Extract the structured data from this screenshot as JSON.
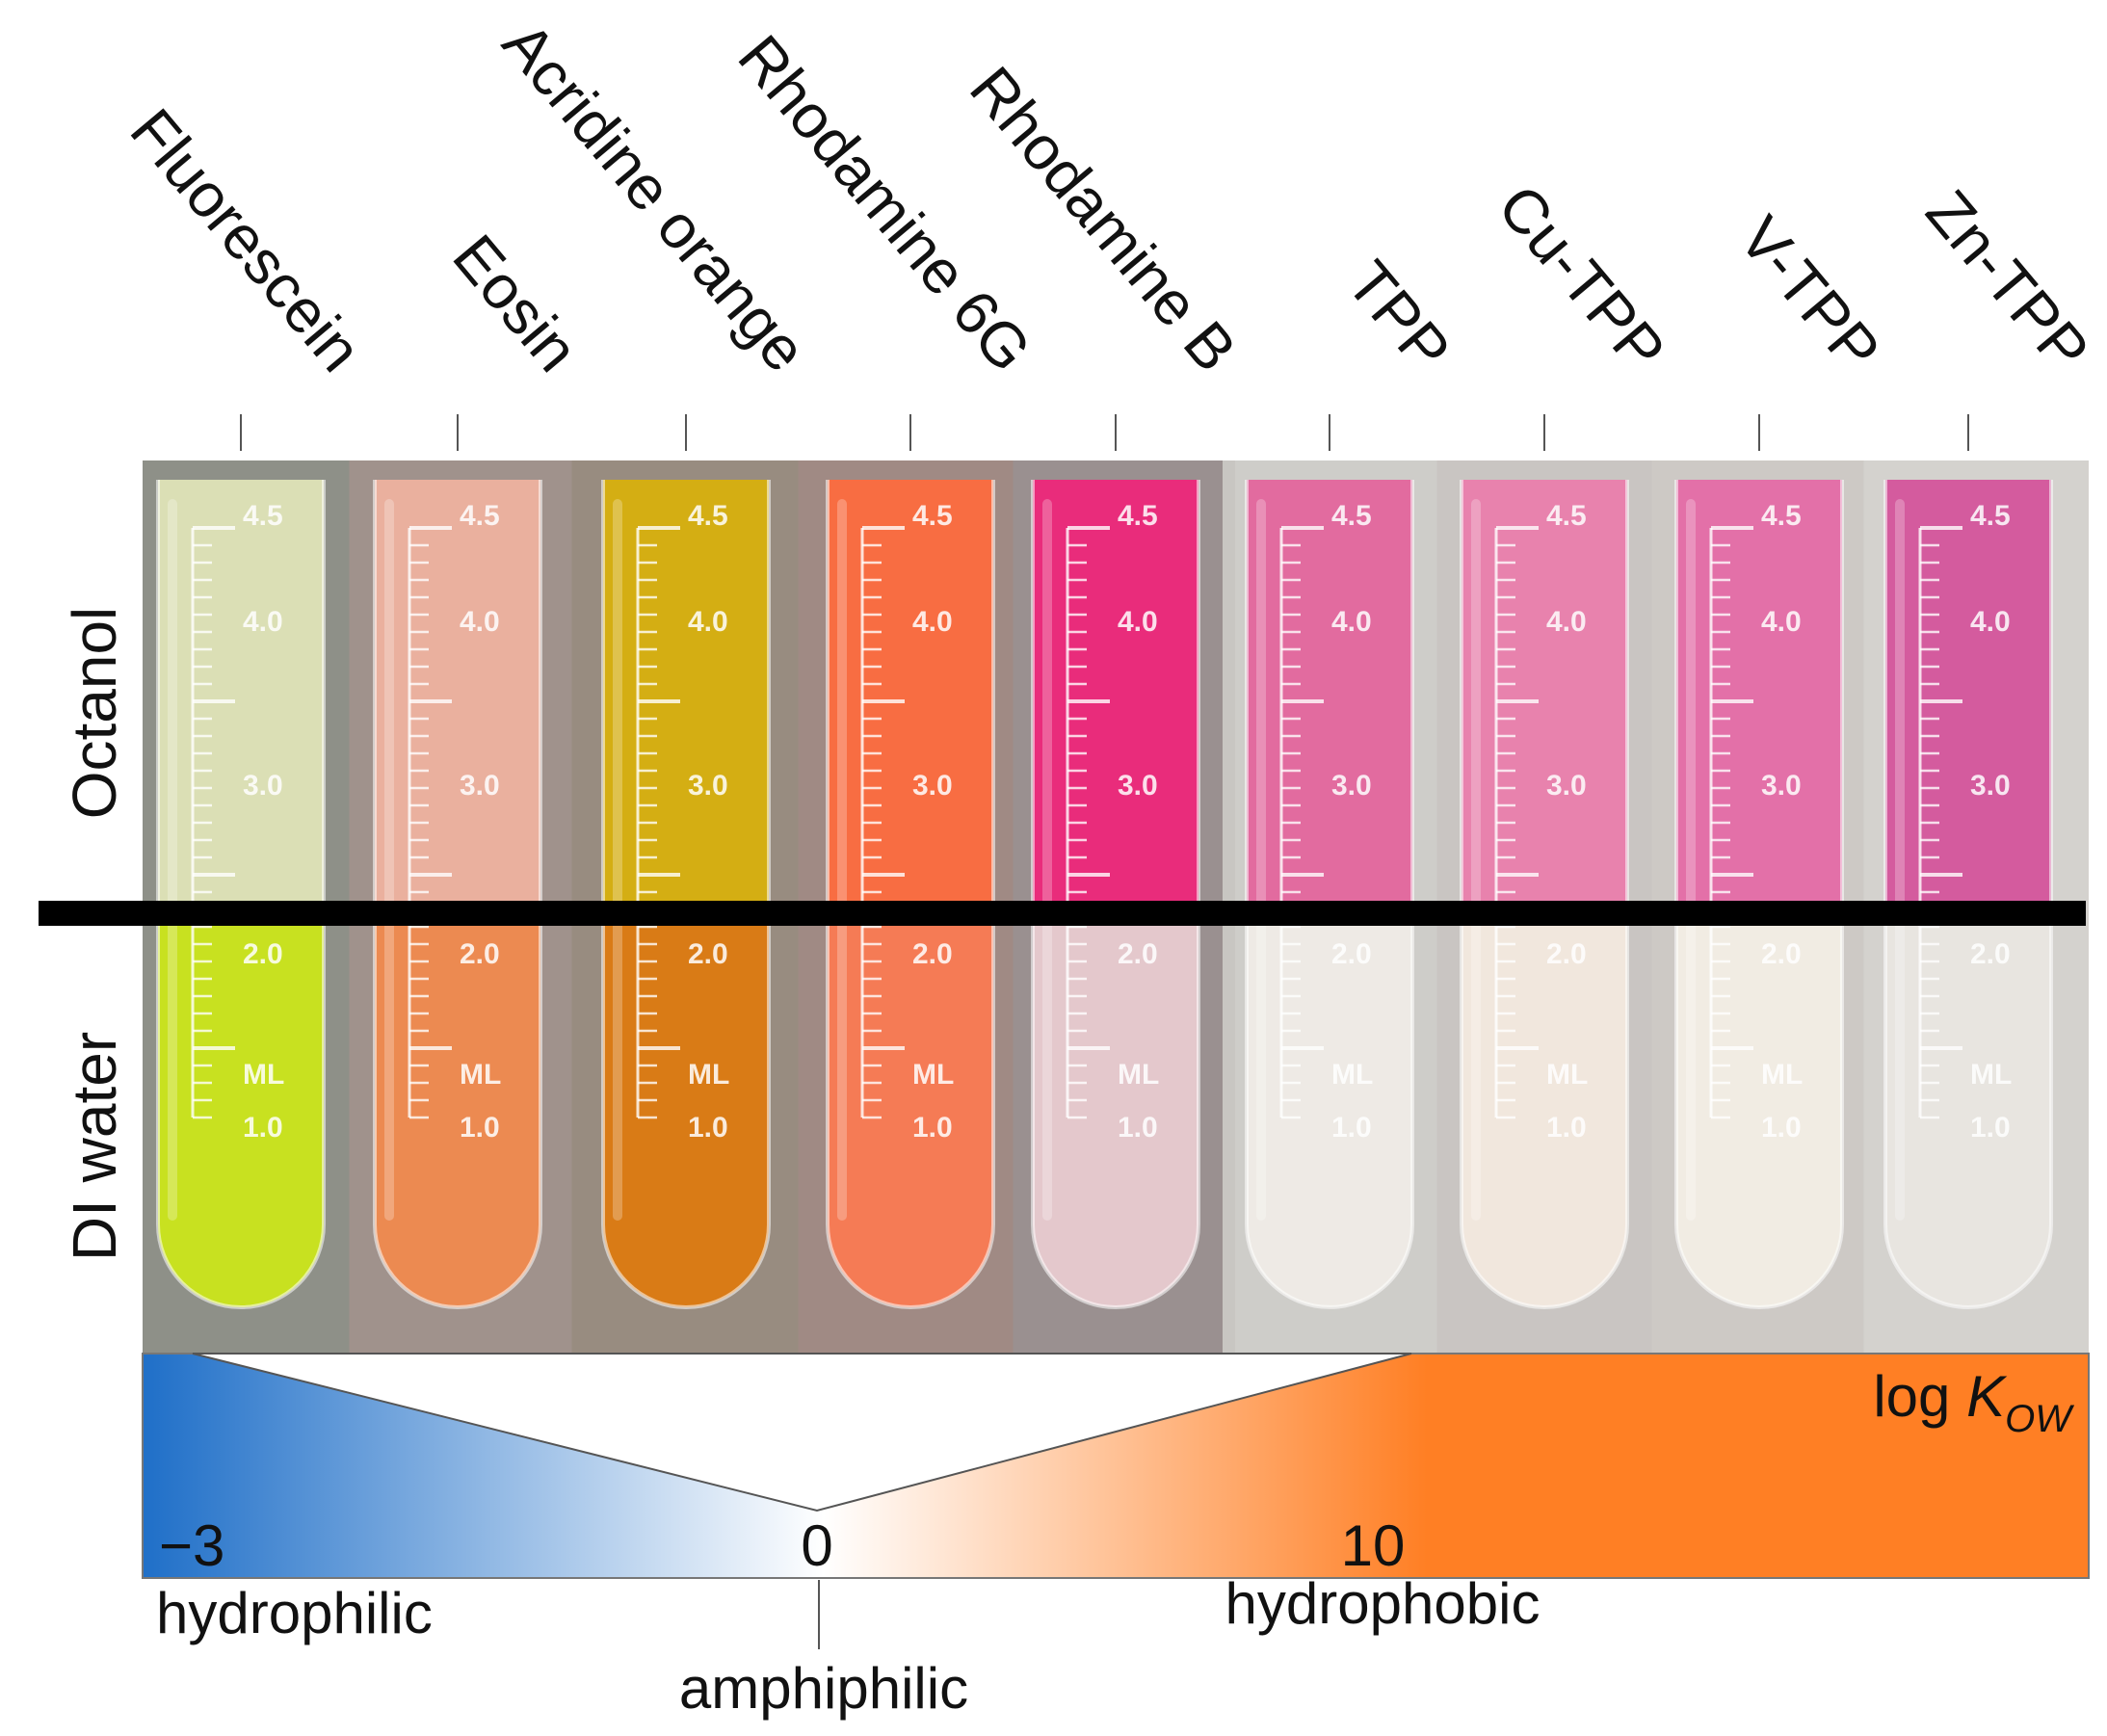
{
  "samples": [
    {
      "label": "Fluorescein",
      "top_color": "#e2e6b8",
      "bottom_color": "#cbe61a",
      "bg": "#8e9088"
    },
    {
      "label": "Eosin",
      "top_color": "#f0b3a0",
      "bottom_color": "#f08a4e",
      "bg": "#a0928c"
    },
    {
      "label": "Acridine orange",
      "top_color": "#d9b10a",
      "bottom_color": "#dc7a10",
      "bg": "#988c80"
    },
    {
      "label": "Rhodamine 6G",
      "top_color": "#ff6a3d",
      "bottom_color": "#fa7a52",
      "bg": "#a08a84"
    },
    {
      "label": "Rhodamine B",
      "top_color": "#f0247a",
      "bottom_color": "#e8cbd0",
      "bg": "#9a9090"
    },
    {
      "label": "TPP",
      "top_color": "#e04d8e",
      "bottom_color": "#eeeae4",
      "bg": "#c8c6c2"
    },
    {
      "label": "Cu-TPP",
      "top_color": "#e86aa0",
      "bottom_color": "#f2e6da",
      "bg": "#c2beba"
    },
    {
      "label": "V-TPP",
      "top_color": "#e2559a",
      "bottom_color": "#f2ece2",
      "bg": "#c6c2be"
    },
    {
      "label": "Zn-TPP",
      "top_color": "#cf3a8c",
      "bottom_color": "#e6e3dd",
      "bg": "#cfccc8"
    }
  ],
  "tube_marks": {
    "tick_values": [
      "4.5",
      "4.0",
      "3.0",
      "2.0",
      "1.0"
    ],
    "unit": "ML"
  },
  "phases": {
    "top": "Octanol",
    "bottom": "DI water"
  },
  "scale": {
    "title_prefix": "log ",
    "title_var": "K",
    "title_sub": "OW",
    "tick_min": "−3",
    "tick_zero": "0",
    "tick_ten": "10",
    "label_left": "hydrophilic",
    "label_middle": "amphiphilic",
    "label_right": "hydrophobic",
    "color_hydrophilic": "#1f6fc8",
    "color_neutral": "#ffffff",
    "color_hydrophobic": "#ff7f24"
  }
}
